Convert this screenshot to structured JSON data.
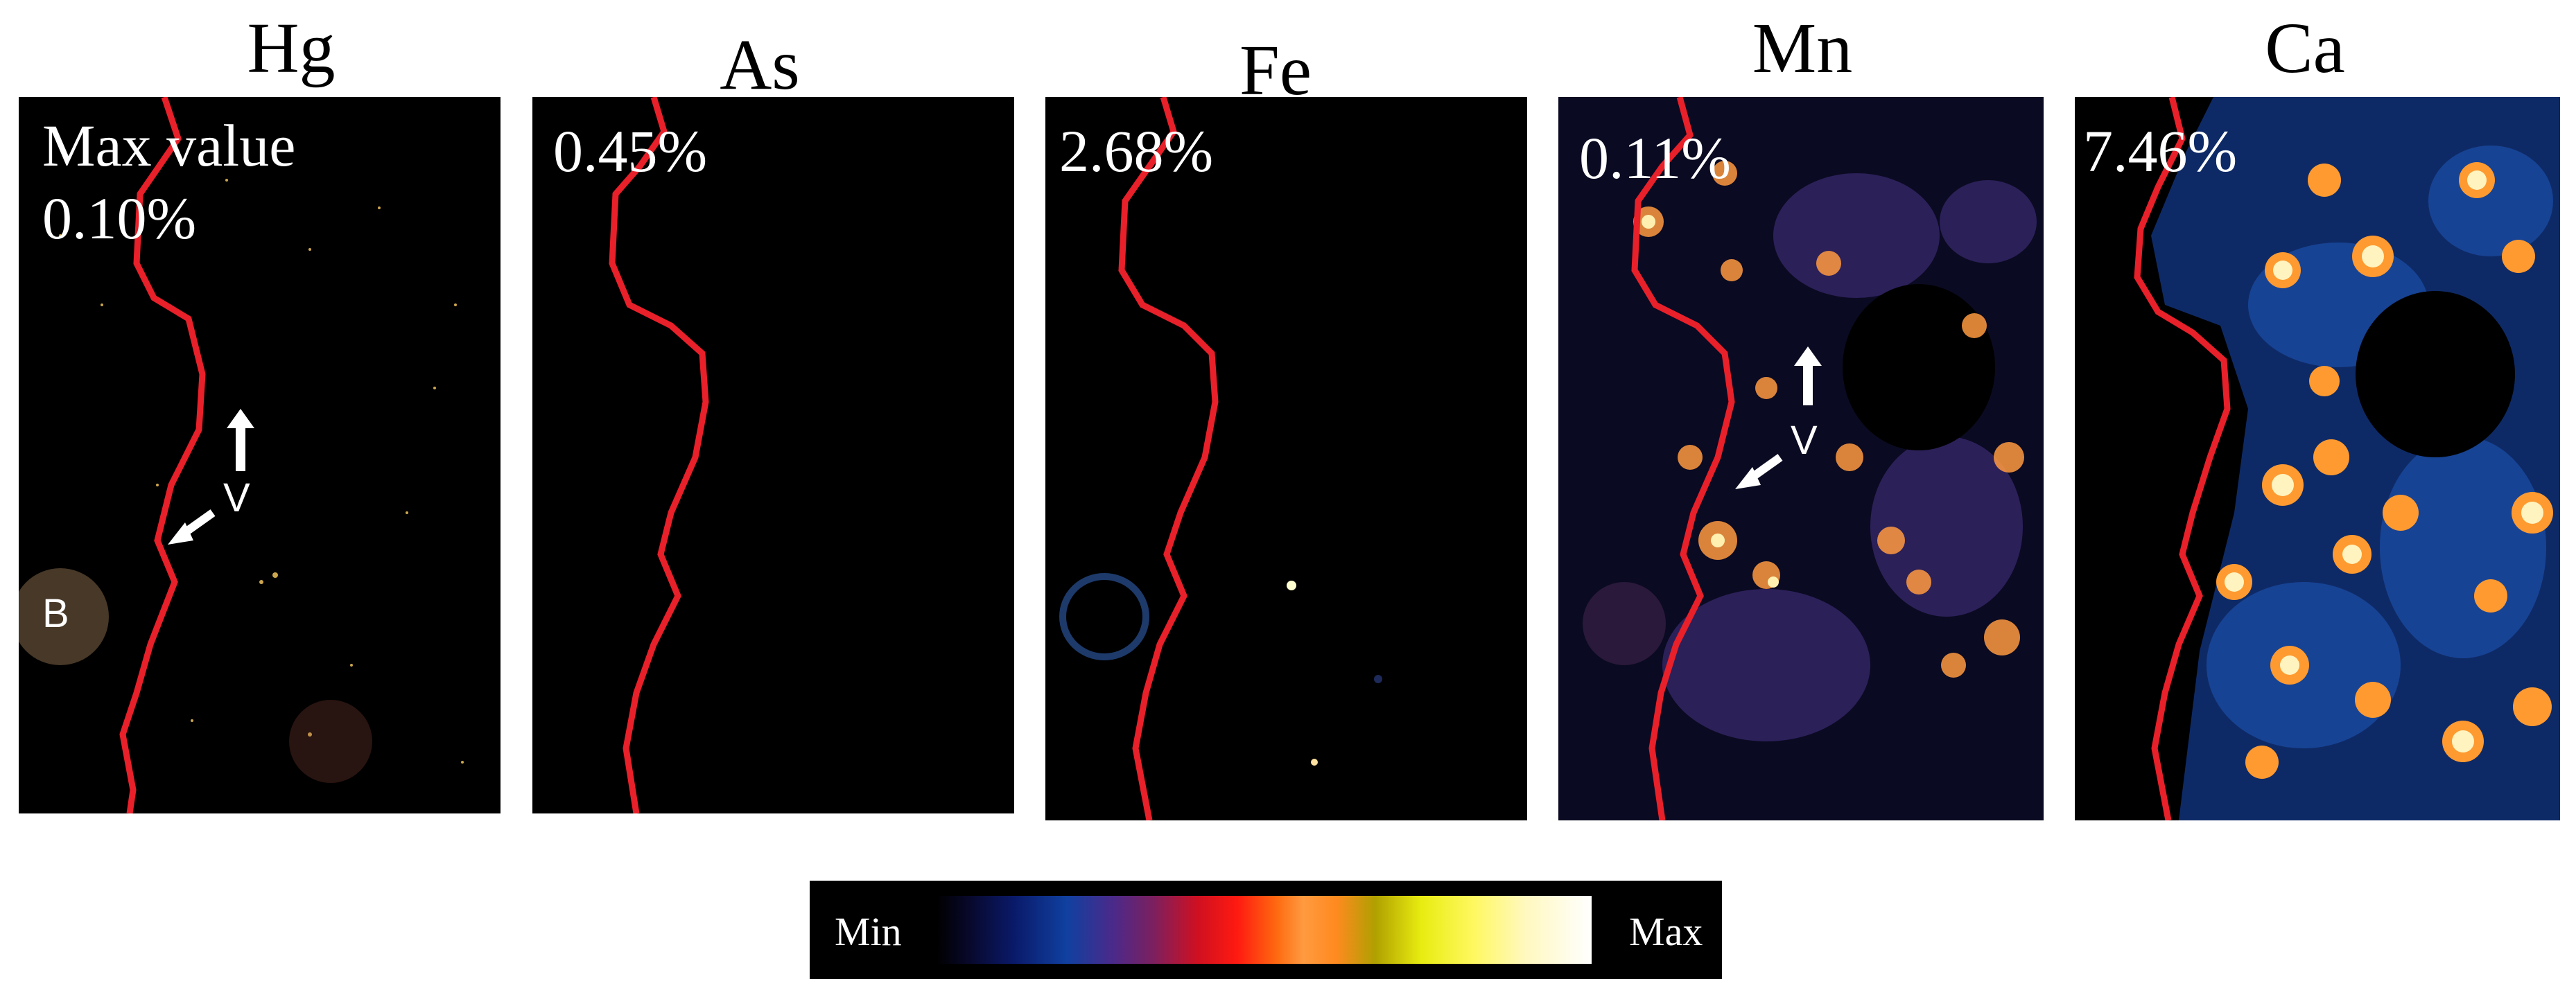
{
  "panels": [
    {
      "element": "Hg",
      "max_text": "Max value\n0.10%"
    },
    {
      "element": "As",
      "max_text": "0.45%"
    },
    {
      "element": "Fe",
      "max_text": "2.68%"
    },
    {
      "element": "Mn",
      "max_text": "0.11%"
    },
    {
      "element": "Ca",
      "max_text": "7.46%"
    }
  ],
  "annotations": {
    "v_label": "V",
    "b_label": "B"
  },
  "colorbar": {
    "min_label": "Min",
    "max_label": "Max"
  },
  "colors": {
    "boundary_line": "#e8202a",
    "background": "#000000"
  }
}
